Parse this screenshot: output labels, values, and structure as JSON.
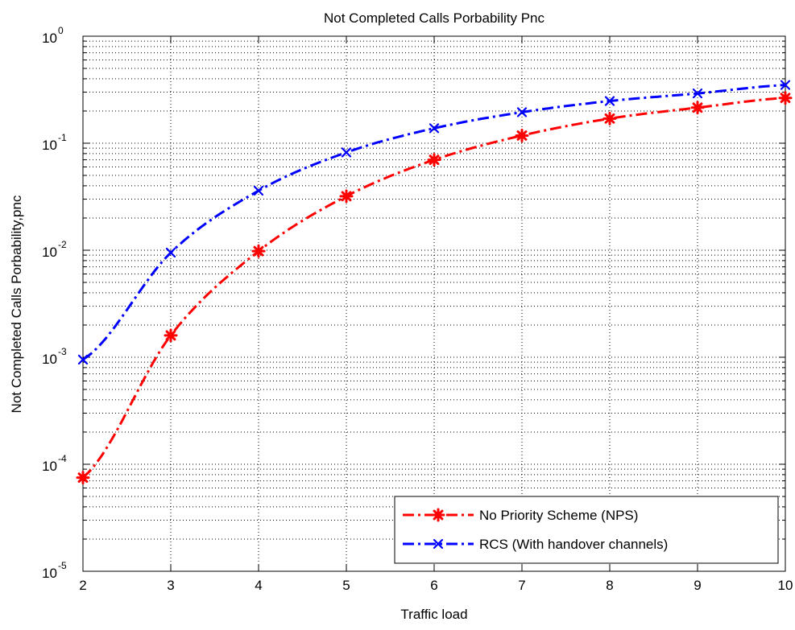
{
  "chart_data": {
    "type": "line",
    "title": "Not Completed Calls Porbability Pnc",
    "xlabel": "Traffic load",
    "ylabel": "Not Completed Calls Porbability,pnc",
    "x": [
      2,
      3,
      4,
      5,
      6,
      7,
      8,
      9,
      10
    ],
    "xlim": [
      2,
      10
    ],
    "ylim": [
      1e-05,
      1
    ],
    "yscale": "log",
    "grid": true,
    "legend_position": "bottom-right",
    "x_tick_labels": [
      "2",
      "3",
      "4",
      "5",
      "6",
      "7",
      "8",
      "9",
      "10"
    ],
    "y_tick_labels": [
      {
        "base": "10",
        "exp": "-5"
      },
      {
        "base": "10",
        "exp": "-4"
      },
      {
        "base": "10",
        "exp": "-3"
      },
      {
        "base": "10",
        "exp": "-2"
      },
      {
        "base": "10",
        "exp": "-1"
      },
      {
        "base": "10",
        "exp": "0"
      }
    ],
    "series": [
      {
        "name": "No Priority Scheme (NPS)",
        "color": "#ff0000",
        "marker": "star",
        "values": [
          7.5e-05,
          0.0016,
          0.0098,
          0.032,
          0.07,
          0.118,
          0.17,
          0.215,
          0.265
        ]
      },
      {
        "name": "RCS (With handover channels)",
        "color": "#0000ff",
        "marker": "x",
        "values": [
          0.00095,
          0.0095,
          0.036,
          0.082,
          0.138,
          0.195,
          0.248,
          0.292,
          0.35
        ]
      }
    ]
  }
}
